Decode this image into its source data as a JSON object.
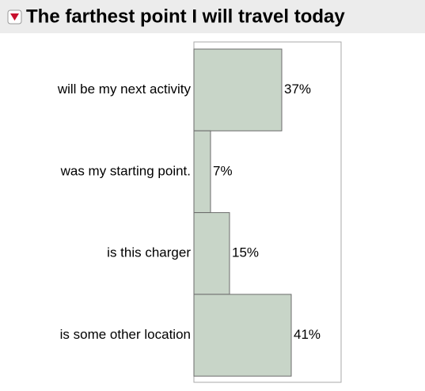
{
  "chart_data": {
    "type": "bar",
    "orientation": "horizontal",
    "title": "The farthest point I will travel today",
    "categories": [
      "will be my next activity",
      "was my starting point.",
      "is this charger",
      "is some other location"
    ],
    "values": [
      37,
      7,
      15,
      41
    ],
    "value_labels": [
      "37%",
      "7%",
      "15%",
      "41%"
    ],
    "color": "#c8d5c8",
    "xlim": [
      0,
      62
    ]
  }
}
